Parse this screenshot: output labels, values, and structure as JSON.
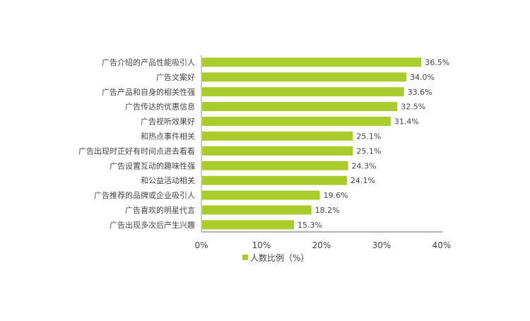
{
  "chart_data": {
    "type": "bar",
    "orientation": "horizontal",
    "categories": [
      "广告介绍的产品性能吸引人",
      "广告文案好",
      "广告产品和自身的相关性强",
      "广告传达的优惠信息",
      "广告视听效果好",
      "和热点事件相关",
      "广告出现时正好有时间点进去看看",
      "广告设置互动的趣味性强",
      "和公益活动相关",
      "广告推荐的品牌或企业吸引人",
      "广告喜欢的明星代言",
      "广告出现多次后产生兴趣"
    ],
    "series": [
      {
        "name": "人数比例（%）",
        "values": [
          36.5,
          34.0,
          33.6,
          32.5,
          31.4,
          25.1,
          25.1,
          24.3,
          24.1,
          19.6,
          18.2,
          15.3
        ],
        "data_labels": [
          "36.5%",
          "34.0%",
          "33.6%",
          "32.5%",
          "31.4%",
          "25.1%",
          "25.1%",
          "24.3%",
          "24.1%",
          "19.6%",
          "18.2%",
          "15.3%"
        ]
      }
    ],
    "xlim": [
      0,
      40
    ],
    "xticks": [
      "0%",
      "10%",
      "20%",
      "30%",
      "40%"
    ],
    "grid": false,
    "legend_placement": "bottom",
    "bar_color": "#a9cb2b"
  }
}
